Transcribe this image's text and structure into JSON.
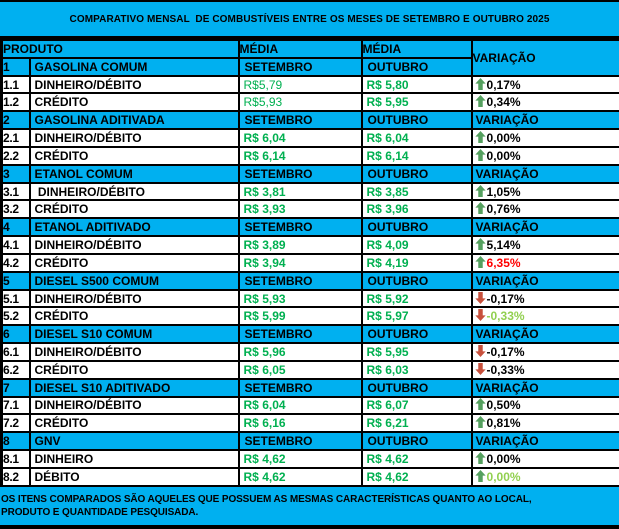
{
  "title": "COMPARATIVO MENSAL  DE COMBUSTÍVEIS ENTRE OS MESES DE SETEMBRO E OUTUBRO 2025",
  "colors": {
    "band_cyan": "#00B0F0",
    "value_green": "#00B050",
    "light_green": "#92D050",
    "alert_red": "#FF0000",
    "arrow_up_green": "#55A05F",
    "arrow_down_red": "#C8503C",
    "text_black": "#000000"
  },
  "table": {
    "headers": {
      "produto": "PRODUTO",
      "media": "MÉDIA",
      "setembro": "SETEMBRO",
      "outubro": "OUTUBRO",
      "variacao": "VARIAÇÃO"
    },
    "groups": [
      {
        "num": "1",
        "name": "GASOLINA COMUM",
        "rows": [
          {
            "num": "1.1",
            "label": "DINHEIRO/DÉBITO",
            "setembro": "R$5,79",
            "setembro_bold": false,
            "outubro": "R$ 5,80",
            "variacao": "0,17%",
            "direction": "up",
            "variacao_color": "#000000"
          },
          {
            "num": "1.2",
            "label": "CRÉDITO",
            "setembro": "R$5,93",
            "setembro_bold": false,
            "outubro": "R$ 5,95",
            "variacao": "0,34%",
            "direction": "up",
            "variacao_color": "#000000"
          }
        ]
      },
      {
        "num": "2",
        "name": "GASOLINA ADITIVADA",
        "rows": [
          {
            "num": "2.1",
            "label": "DINHEIRO/DÉBITO",
            "setembro": "R$ 6,04",
            "setembro_bold": true,
            "outubro": "R$ 6,04",
            "variacao": "0,00%",
            "direction": "up",
            "variacao_color": "#000000"
          },
          {
            "num": "2.2",
            "label": "CRÉDITO",
            "setembro": "R$ 6,14",
            "setembro_bold": true,
            "outubro": "R$ 6,14",
            "variacao": "0,00%",
            "direction": "up",
            "variacao_color": "#000000"
          }
        ]
      },
      {
        "num": "3",
        "name": "ETANOL COMUM",
        "rows": [
          {
            "num": "3.1",
            "label": " DINHEIRO/DÉBITO",
            "setembro": "R$ 3,81",
            "setembro_bold": true,
            "outubro": "R$ 3,85",
            "variacao": "1,05%",
            "direction": "up",
            "variacao_color": "#000000"
          },
          {
            "num": "3.2",
            "label": "CRÉDITO",
            "setembro": "R$ 3,93",
            "setembro_bold": true,
            "outubro": "R$ 3,96",
            "variacao": "0,76%",
            "direction": "up",
            "variacao_color": "#000000"
          }
        ]
      },
      {
        "num": "4",
        "name": "ETANOL ADITIVADO",
        "rows": [
          {
            "num": "4.1",
            "label": "DINHEIRO/DÉBITO",
            "setembro": "R$ 3,89",
            "setembro_bold": true,
            "outubro": "R$ 4,09",
            "variacao": "5,14%",
            "direction": "up",
            "variacao_color": "#000000"
          },
          {
            "num": "4.2",
            "label": "CRÉDITO",
            "setembro": "R$ 3,94",
            "setembro_bold": true,
            "outubro": "R$ 4,19",
            "variacao": "6,35%",
            "direction": "up",
            "variacao_color": "#FF0000"
          }
        ]
      },
      {
        "num": "5",
        "name": "DIESEL S500 COMUM",
        "rows": [
          {
            "num": "5.1",
            "label": "DINHEIRO/DÉBITO",
            "setembro": "R$ 5,93",
            "setembro_bold": true,
            "outubro": "R$ 5,92",
            "variacao": "-0,17%",
            "direction": "down",
            "variacao_color": "#000000"
          },
          {
            "num": "5.2",
            "label": "CRÉDITO",
            "setembro": "R$ 5,99",
            "setembro_bold": true,
            "outubro": "R$ 5,97",
            "variacao": "-0,33%",
            "direction": "down",
            "variacao_color": "#92D050"
          }
        ]
      },
      {
        "num": "6",
        "name": "DIESEL S10 COMUM",
        "rows": [
          {
            "num": "6.1",
            "label": "DINHEIRO/DÉBITO",
            "setembro": "R$ 5,96",
            "setembro_bold": true,
            "outubro": "R$ 5,95",
            "variacao": "-0,17%",
            "direction": "down",
            "variacao_color": "#000000"
          },
          {
            "num": "6.2",
            "label": "CRÉDITO",
            "setembro": "R$ 6,05",
            "setembro_bold": true,
            "outubro": "R$ 6,03",
            "variacao": "-0,33%",
            "direction": "down",
            "variacao_color": "#000000"
          }
        ]
      },
      {
        "num": "7",
        "name": "DIESEL S10 ADITIVADO",
        "rows": [
          {
            "num": "7.1",
            "label": "DINHEIRO/DÉBITO",
            "setembro": "R$ 6,04",
            "setembro_bold": true,
            "outubro": "R$ 6,07",
            "variacao": "0,50%",
            "direction": "up",
            "variacao_color": "#000000"
          },
          {
            "num": "7.2",
            "label": "CRÉDITO",
            "setembro": "R$ 6,16",
            "setembro_bold": true,
            "outubro": "R$ 6,21",
            "variacao": "0,81%",
            "direction": "up",
            "variacao_color": "#000000"
          }
        ]
      },
      {
        "num": "8",
        "name": "GNV",
        "rows": [
          {
            "num": "8.1",
            "label": "DINHEIRO",
            "setembro": "R$ 4,62",
            "setembro_bold": true,
            "outubro": "R$ 4,62",
            "variacao": "0,00%",
            "direction": "up",
            "variacao_color": "#000000"
          },
          {
            "num": "8.2",
            "label": "DÉBITO",
            "setembro": "R$ 4,62",
            "setembro_bold": true,
            "outubro": "R$ 4,62",
            "variacao": "0,00%",
            "direction": "up",
            "variacao_color": "#92D050"
          }
        ]
      }
    ]
  },
  "footer": {
    "line1": "OS ITENS COMPARADOS SÃO AQUELES QUE POSSUEM AS MESMAS CARACTERÍSTICAS QUANTO AO LOCAL,",
    "line2": "PRODUTO E QUANTIDADE PESQUISADA."
  }
}
